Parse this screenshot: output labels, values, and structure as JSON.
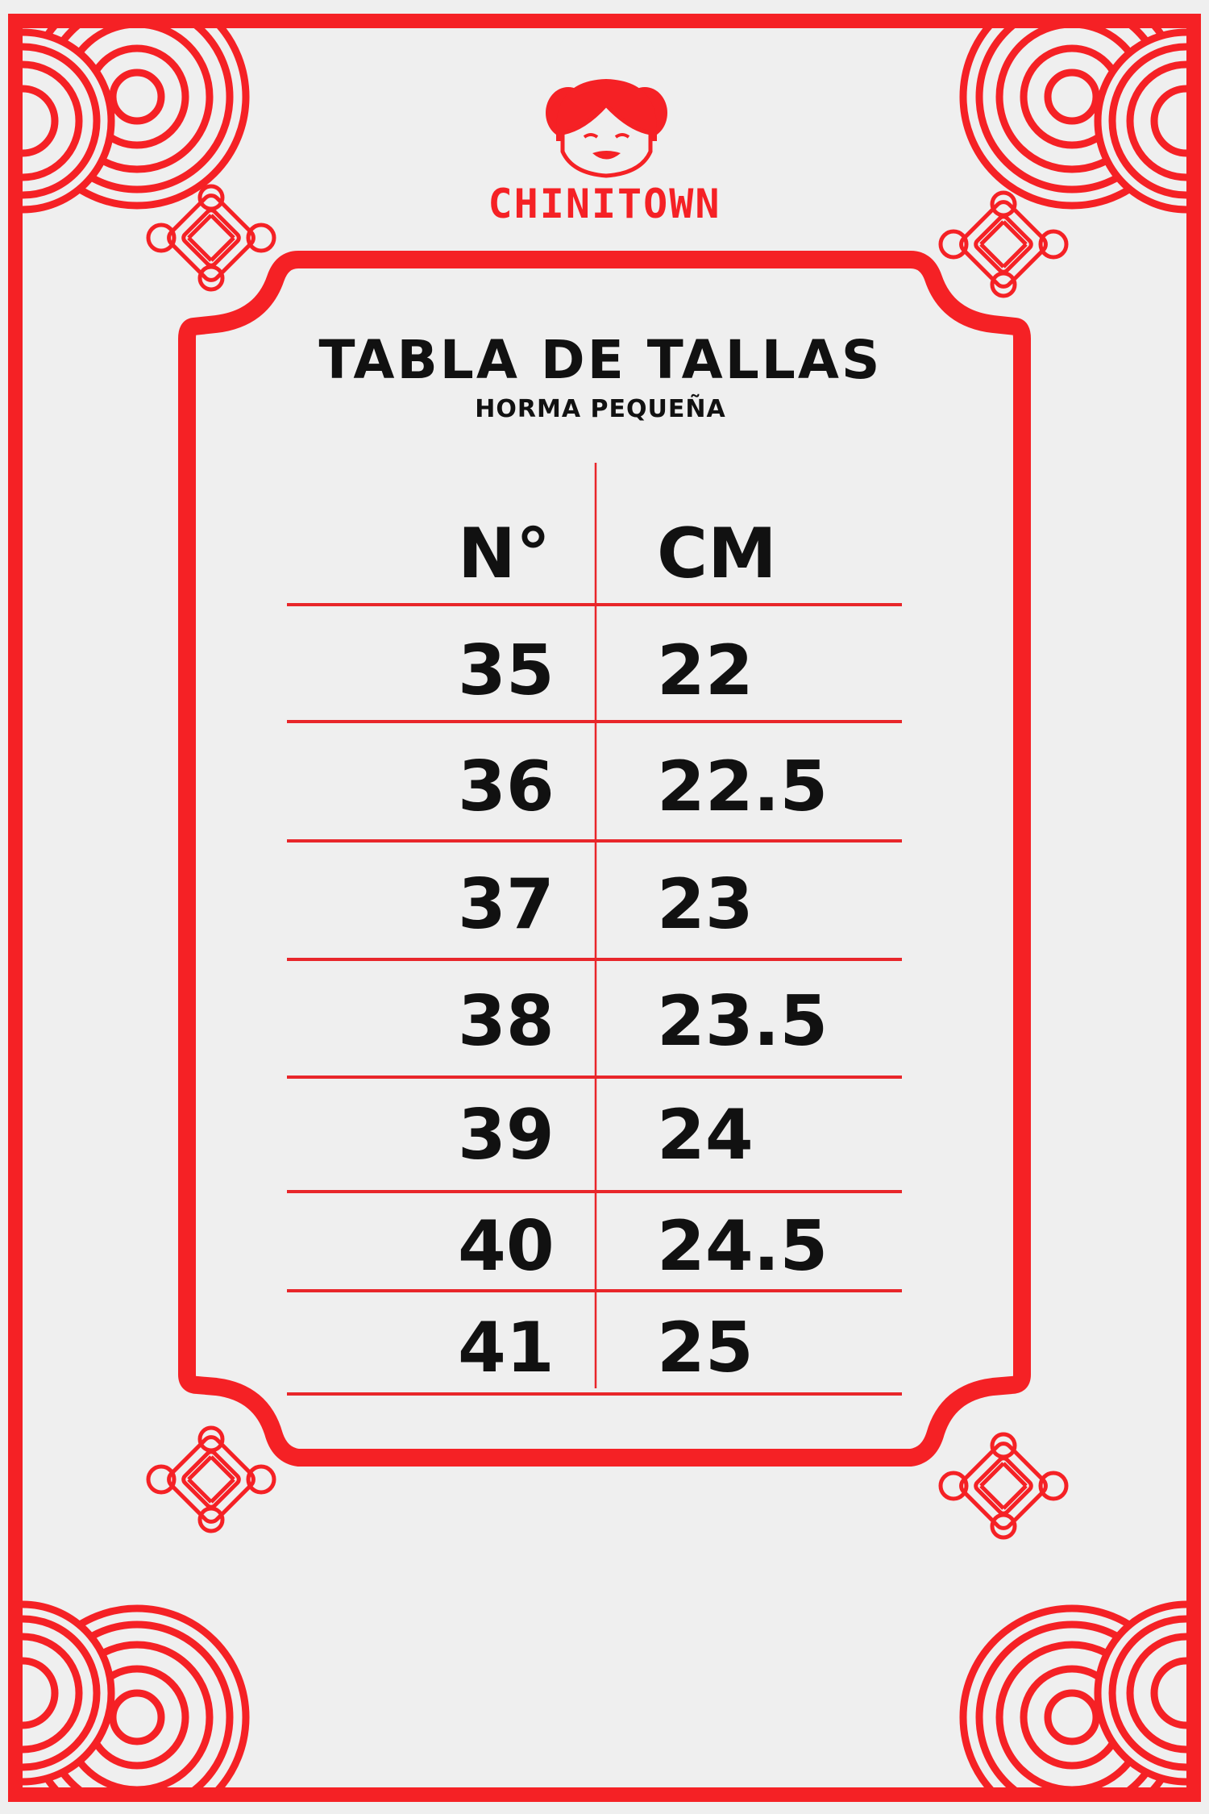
{
  "brand": {
    "name": "CHINITOWN",
    "accent_color": "#f52125"
  },
  "header": {
    "title": "TABLA DE TALLAS",
    "subtitle": "HORMA PEQUEÑA"
  },
  "table": {
    "columns": [
      "N°",
      "CM"
    ],
    "rows": [
      [
        "35",
        "22"
      ],
      [
        "36",
        "22.5"
      ],
      [
        "37",
        "23"
      ],
      [
        "38",
        "23.5"
      ],
      [
        "39",
        "24"
      ],
      [
        "40",
        "24.5"
      ],
      [
        "41",
        "25"
      ]
    ]
  }
}
